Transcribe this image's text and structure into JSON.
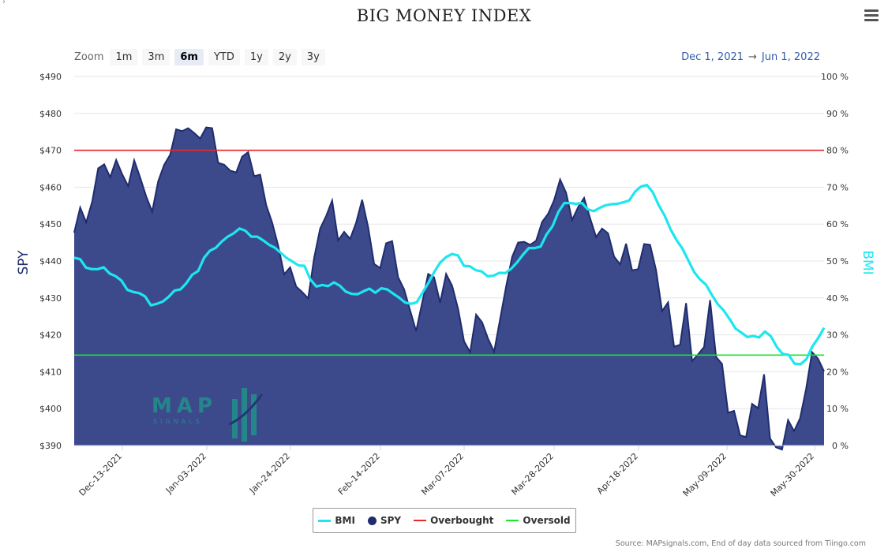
{
  "title": "BIG MONEY INDEX",
  "zoom": {
    "label": "Zoom",
    "buttons": [
      "1m",
      "3m",
      "6m",
      "YTD",
      "1y",
      "2y",
      "3y"
    ],
    "active": "6m"
  },
  "range": {
    "from": "Dec 1, 2021",
    "arrow": "→",
    "to": "Jun 1, 2022"
  },
  "logo": {
    "text": "MAP",
    "sub": "SIGNALS"
  },
  "source": "Source: MAPsignals.com, End of day data sourced from Tiingo.com",
  "colors": {
    "spy": "#1f2d6e",
    "spy_fill": "#3c4a8c",
    "bmi": "#1ee6f0",
    "overbought": "#e8282c",
    "oversold": "#19e336"
  },
  "chart_data": {
    "type": "area",
    "title": "BIG MONEY INDEX",
    "x_ticks": [
      "Dec-13-2021",
      "Jan-03-2022",
      "Jan-24-2022",
      "Feb-14-2022",
      "Mar-07-2022",
      "Mar-28-2022",
      "Apr-18-2022",
      "May-09-2022",
      "May-30-2022"
    ],
    "y_left": {
      "label": "SPY",
      "min": 390,
      "max": 490,
      "ticks": [
        "$390",
        "$400",
        "$410",
        "$420",
        "$430",
        "$440",
        "$450",
        "$460",
        "$470",
        "$480",
        "$490"
      ]
    },
    "y_right": {
      "label": "BMI",
      "min": 0,
      "max": 100,
      "ticks": [
        "0 %",
        "10 %",
        "20 %",
        "30 %",
        "40 %",
        "50 %",
        "60 %",
        "70 %",
        "80 %",
        "90 %",
        "100 %"
      ]
    },
    "series": [
      {
        "name": "SPY",
        "type": "area",
        "axis": "left",
        "values": [
          447.7,
          454.5,
          450.5,
          456.1,
          465.1,
          466.2,
          462.7,
          467.4,
          463.5,
          460.3,
          467.3,
          462.6,
          457.5,
          453.4,
          461.6,
          466.1,
          468.8,
          475.7,
          475.2,
          476.0,
          474.7,
          473.2,
          476.2,
          476.0,
          466.6,
          466.1,
          464.5,
          464.0,
          468.3,
          469.5,
          463.0,
          463.4,
          455.2,
          450.4,
          444.2,
          436.4,
          438.3,
          433.1,
          431.6,
          429.9,
          440.9,
          448.8,
          452.2,
          456.4,
          445.6,
          447.9,
          446.0,
          450.4,
          456.6,
          449.2,
          439.2,
          438.1,
          444.8,
          445.4,
          435.6,
          432.3,
          426.6,
          421.0,
          428.7,
          436.5,
          435.6,
          428.7,
          436.5,
          433.3,
          427.0,
          418.2,
          415.3,
          425.5,
          423.4,
          418.9,
          415.4,
          424.3,
          433.1,
          441.1,
          445.0,
          445.2,
          444.4,
          445.5,
          450.6,
          452.8,
          456.5,
          462.1,
          458.5,
          451.1,
          454.6,
          457.1,
          451.6,
          446.5,
          448.8,
          447.5,
          441.2,
          439.1,
          444.7,
          437.5,
          437.8,
          444.6,
          444.4,
          437.5,
          426.4,
          428.8,
          416.8,
          417.3,
          428.6,
          412.9,
          414.7,
          416.7,
          429.4,
          414.0,
          412.1,
          398.9,
          399.4,
          392.8,
          392.3,
          401.3,
          400.1,
          409.3,
          391.9,
          389.5,
          388.9,
          396.9,
          393.9,
          397.4,
          405.3,
          415.3,
          413.5,
          410.1
        ]
      },
      {
        "name": "BMI",
        "type": "line",
        "axis": "right",
        "values": [
          50.9,
          50.5,
          48.2,
          47.8,
          47.8,
          48.3,
          46.6,
          45.9,
          44.7,
          42.2,
          41.6,
          41.3,
          40.4,
          38.0,
          38.4,
          39.0,
          40.3,
          42.0,
          42.3,
          44.0,
          46.3,
          47.3,
          50.9,
          52.8,
          53.6,
          55.3,
          56.6,
          57.5,
          58.8,
          58.2,
          56.6,
          56.6,
          55.6,
          54.4,
          53.6,
          52.2,
          50.8,
          49.8,
          48.8,
          48.7,
          45.0,
          43.1,
          43.5,
          43.2,
          44.2,
          43.3,
          41.7,
          41.1,
          41.0,
          41.8,
          42.5,
          41.4,
          42.6,
          42.3,
          41.2,
          40.1,
          38.8,
          38.4,
          38.8,
          41.4,
          44.1,
          47.1,
          49.6,
          51.1,
          51.9,
          51.5,
          48.7,
          48.6,
          47.5,
          47.2,
          45.9,
          46.0,
          46.8,
          46.7,
          47.9,
          49.6,
          51.7,
          53.5,
          53.5,
          53.9,
          57.2,
          59.4,
          63.3,
          65.7,
          65.7,
          65.5,
          65.7,
          64.0,
          63.5,
          64.4,
          65.1,
          65.4,
          65.5,
          65.9,
          66.4,
          68.8,
          70.2,
          70.6,
          68.6,
          65.1,
          62.3,
          58.6,
          55.7,
          53.4,
          50.2,
          47.0,
          45.0,
          43.6,
          40.8,
          38.3,
          36.6,
          34.3,
          31.7,
          30.6,
          29.4,
          29.7,
          29.3,
          30.9,
          29.6,
          26.7,
          24.8,
          24.6,
          22.2,
          22.0,
          23.4,
          26.8,
          29.1,
          31.9
        ]
      }
    ],
    "reference_lines": [
      {
        "name": "Overbought",
        "axis": "right",
        "value": 80
      },
      {
        "name": "Oversold",
        "axis": "right",
        "value": 24.5
      }
    ],
    "legend": [
      "BMI",
      "SPY",
      "Overbought",
      "Oversold"
    ],
    "legend_position": "bottom-center",
    "grid": true
  }
}
